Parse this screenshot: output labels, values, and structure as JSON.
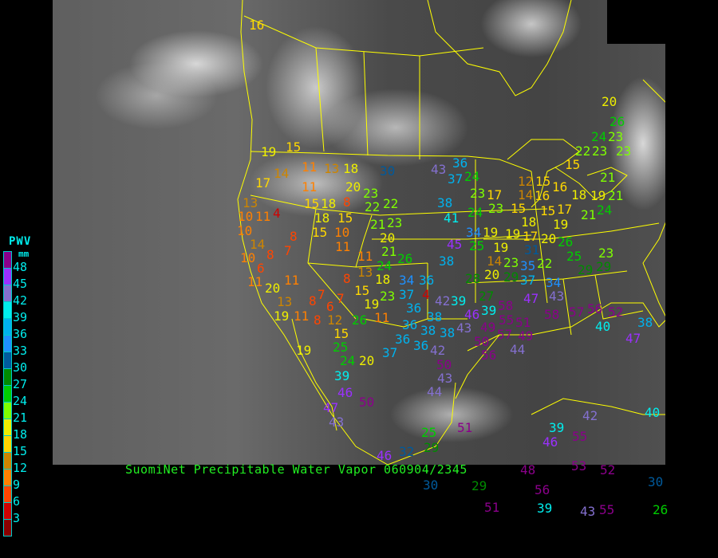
{
  "title": "SuomiNet Precipitable Water Vapor 060904/2345",
  "legend": {
    "title": "PWV",
    "unit": "mm",
    "ticks": [
      "48",
      "45",
      "42",
      "39",
      "36",
      "33",
      "30",
      "27",
      "24",
      "21",
      "18",
      "15",
      "12",
      "9",
      "6",
      "3"
    ],
    "colors": [
      "#8b008b",
      "#9b30ff",
      "#8470d0",
      "#00eeee",
      "#00b2ee",
      "#1e90ff",
      "#005a9c",
      "#008b00",
      "#00cd00",
      "#7fff00",
      "#eeee00",
      "#ffd700",
      "#cd8500",
      "#ff8000",
      "#ff4500",
      "#d00000",
      "#8b0000"
    ]
  },
  "stations": [
    16,
    15,
    19,
    14,
    17,
    11,
    13,
    18,
    30,
    11,
    20,
    8,
    23,
    15,
    18,
    15,
    22,
    22,
    13,
    10,
    11,
    4,
    18,
    21,
    23,
    10,
    15,
    10,
    20,
    14,
    8,
    10,
    8,
    7,
    11,
    21,
    6,
    11,
    24,
    26,
    11,
    13,
    18,
    11,
    8,
    20,
    7,
    13,
    8,
    6,
    7,
    15,
    19,
    23,
    11,
    8,
    12,
    26,
    11,
    19,
    15,
    19,
    25,
    24,
    20,
    39,
    46,
    50,
    47,
    43,
    34,
    36,
    37,
    4,
    36,
    38,
    42,
    36,
    38,
    36,
    36,
    38,
    37,
    42,
    50,
    43,
    44,
    51,
    25,
    20,
    26,
    24,
    23,
    22,
    23,
    23,
    15,
    43,
    36,
    37,
    24,
    12,
    15,
    16,
    14,
    16,
    18,
    15,
    17,
    23,
    38,
    23,
    15,
    18,
    17,
    19,
    41,
    24,
    19,
    24,
    21,
    21,
    21,
    17,
    19,
    20,
    26,
    34,
    19,
    19,
    45,
    25,
    38,
    31,
    23,
    14,
    29,
    22,
    25,
    23,
    29,
    29,
    20,
    28,
    37,
    35,
    34,
    43,
    47,
    27,
    39,
    39,
    46,
    43,
    49,
    55,
    51,
    58,
    58,
    57,
    56,
    52,
    40,
    38,
    47,
    50,
    57,
    49,
    56,
    44,
    42,
    40,
    39,
    46,
    55,
    48,
    53,
    52,
    30,
    29,
    56,
    51,
    39,
    43,
    55,
    26,
    29,
    32,
    30,
    46
  ]
}
